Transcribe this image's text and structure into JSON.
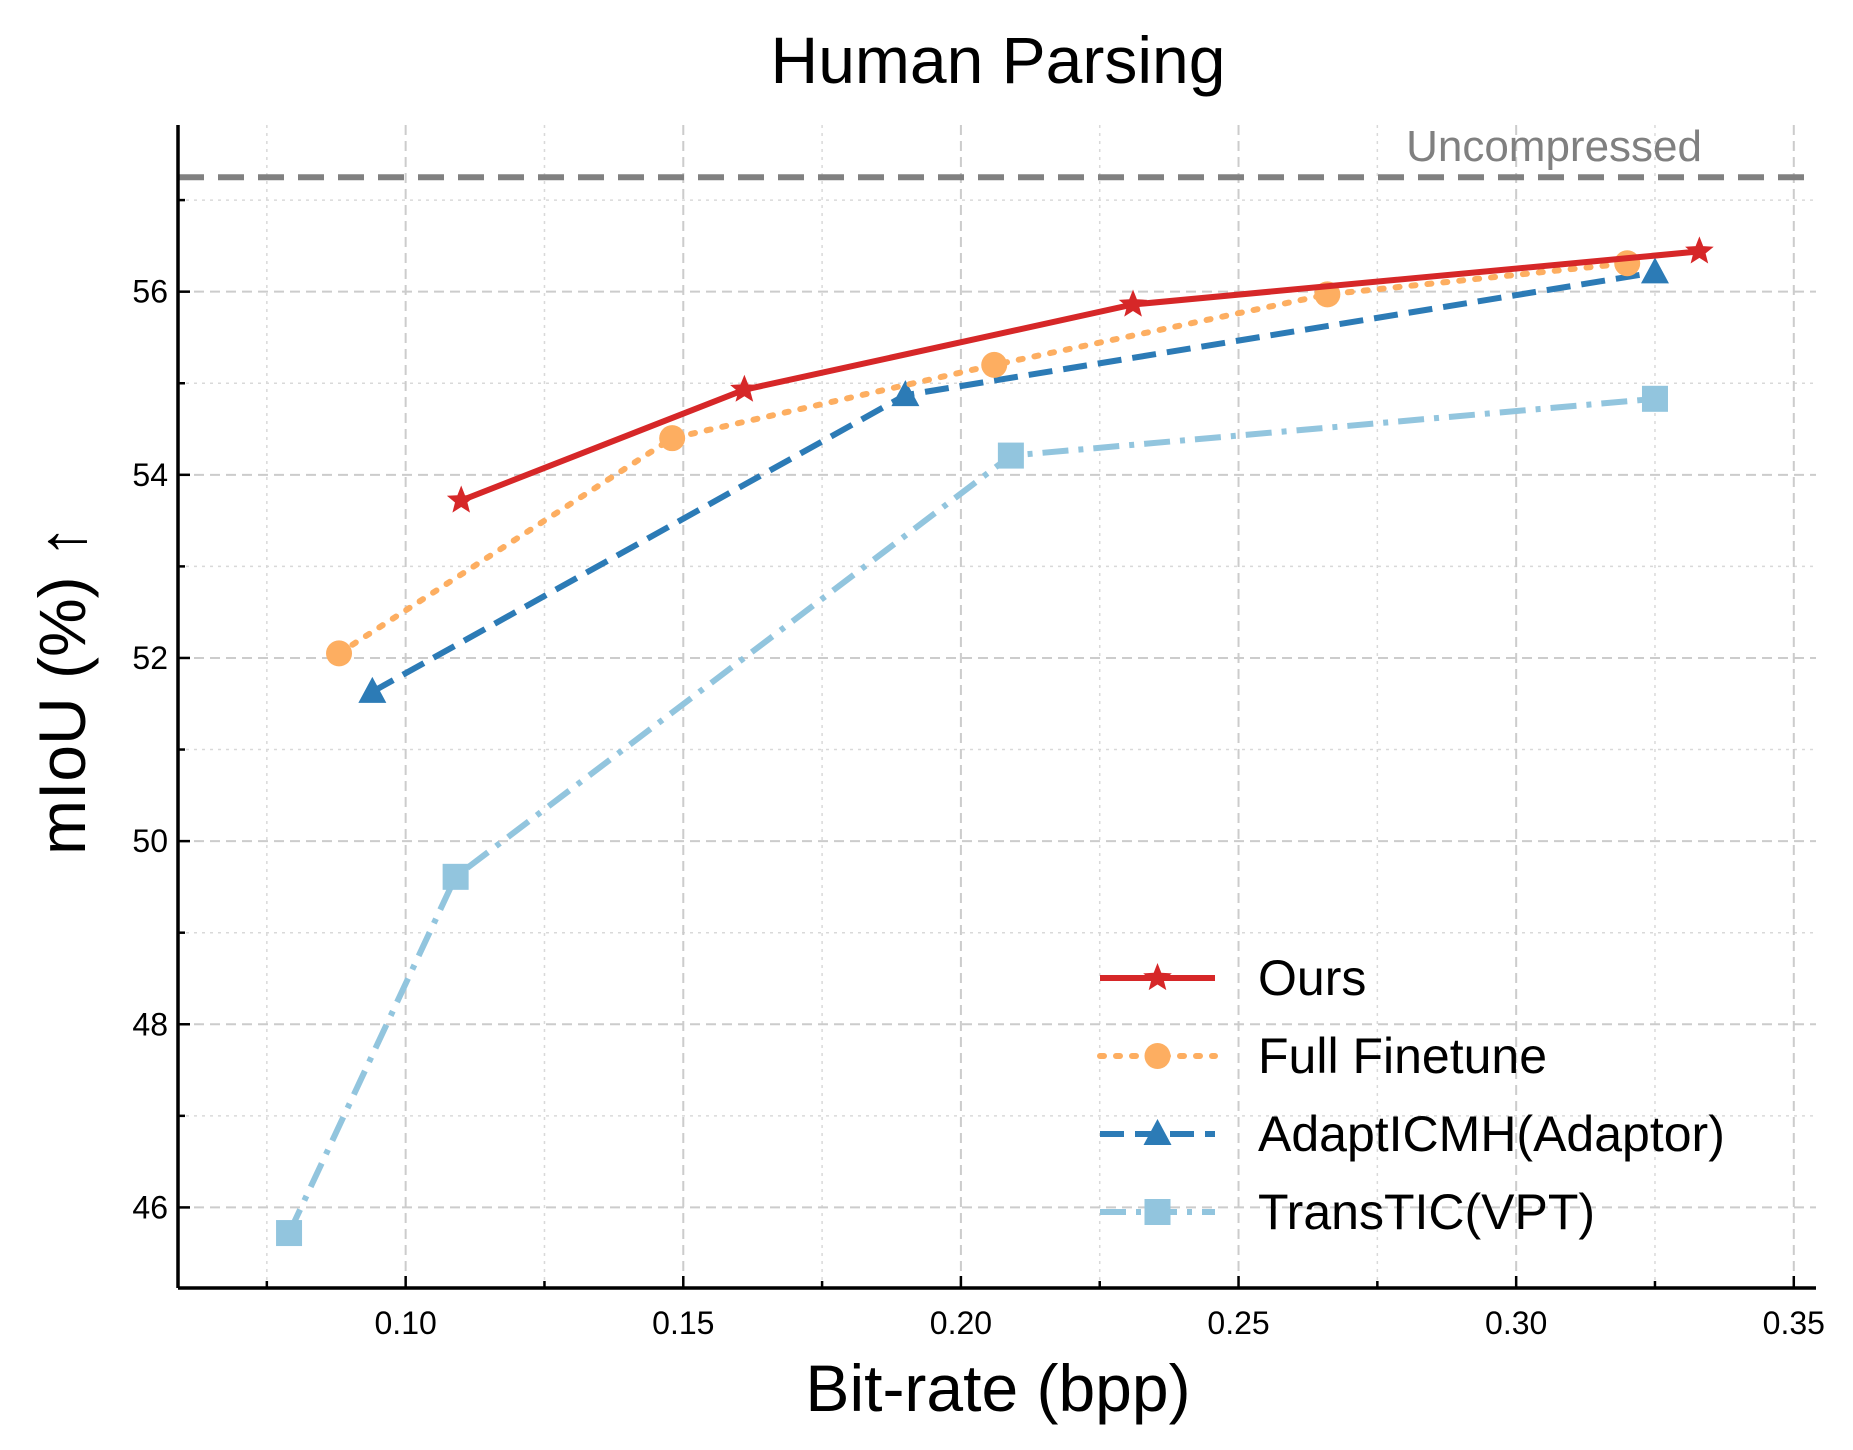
{
  "chart_data": {
    "type": "line",
    "title": "Human Parsing",
    "xlabel": "Bit-rate (bpp)",
    "ylabel": "mIoU (%) ↑",
    "xlim": [
      0.059,
      0.354
    ],
    "ylim": [
      45.12,
      57.82
    ],
    "xticks": [
      0.1,
      0.15,
      0.2,
      0.25,
      0.3,
      0.35
    ],
    "xtick_labels": [
      "0.10",
      "0.15",
      "0.20",
      "0.25",
      "0.30",
      "0.35"
    ],
    "xminor": [
      0.075,
      0.125,
      0.175,
      0.225,
      0.275,
      0.325
    ],
    "yticks": [
      46,
      48,
      50,
      52,
      54,
      56
    ],
    "ytick_labels": [
      "46",
      "48",
      "50",
      "52",
      "54",
      "56"
    ],
    "yminor": [
      47,
      49,
      51,
      53,
      55,
      57
    ],
    "grid": true,
    "legend_position": "lower-right",
    "reference_line": {
      "label": "Uncompressed",
      "y": 57.25,
      "color": "#808080"
    },
    "series": [
      {
        "name": "Ours",
        "color": "#d62728",
        "marker": "star",
        "linestyle": "solid",
        "points": [
          [
            0.11,
            53.72
          ],
          [
            0.161,
            54.93
          ],
          [
            0.231,
            55.86
          ],
          [
            0.333,
            56.44
          ]
        ]
      },
      {
        "name": "Full Finetune",
        "color": "#fdae61",
        "marker": "circle",
        "linestyle": "dotted",
        "points": [
          [
            0.088,
            52.05
          ],
          [
            0.148,
            54.4
          ],
          [
            0.206,
            55.2
          ],
          [
            0.266,
            55.97
          ],
          [
            0.32,
            56.31
          ]
        ]
      },
      {
        "name": "AdaptICMH(Adaptor)",
        "color": "#2c7bb6",
        "marker": "triangle",
        "linestyle": "dashed",
        "points": [
          [
            0.094,
            51.63
          ],
          [
            0.19,
            54.87
          ],
          [
            0.325,
            56.21
          ]
        ]
      },
      {
        "name": "TransTIC(VPT)",
        "color": "#92c5de",
        "marker": "square",
        "linestyle": "dashdot",
        "points": [
          [
            0.079,
            45.72
          ],
          [
            0.109,
            49.61
          ],
          [
            0.209,
            54.21
          ],
          [
            0.325,
            54.83
          ]
        ]
      }
    ]
  }
}
